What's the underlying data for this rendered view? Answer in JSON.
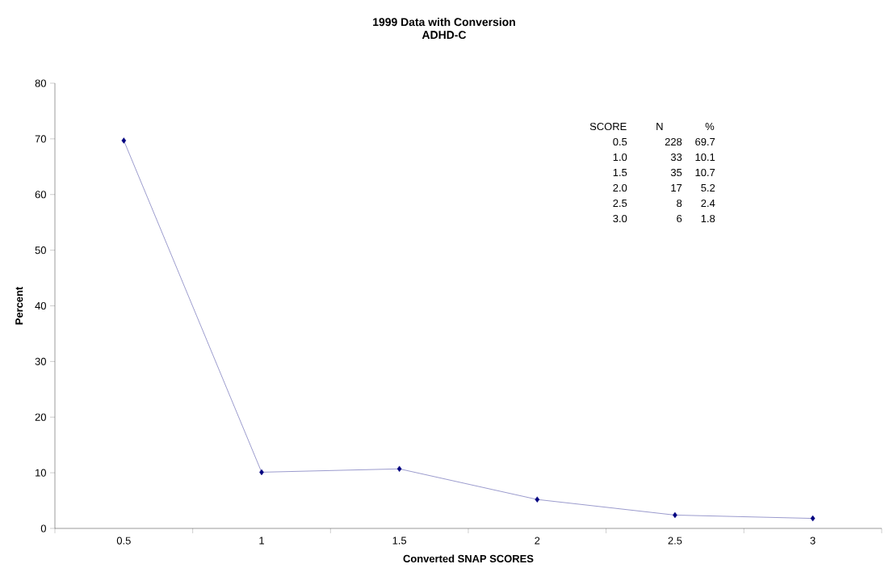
{
  "chart_data": {
    "type": "line",
    "title": "1999 Data with Conversion",
    "subtitle": "ADHD-C",
    "xlabel": "Converted SNAP SCORES",
    "ylabel": "Percent",
    "categories": [
      "0.5",
      "1",
      "1.5",
      "2",
      "2.5",
      "3"
    ],
    "series": [
      {
        "color": "#000080",
        "values": [
          69.7,
          10.1,
          10.7,
          5.2,
          2.4,
          1.8
        ]
      }
    ],
    "ylim": [
      0,
      80
    ],
    "yticks": [
      0,
      10,
      20,
      30,
      40,
      50,
      60,
      70,
      80
    ],
    "marker": "diamond",
    "line_style": "solid",
    "grid": false,
    "annotations": [
      "SCORE",
      "N",
      "%",
      "0.5",
      "228",
      "69.7",
      "1.0",
      "33",
      "10.1",
      "1.5",
      "35",
      "10.7",
      "2.0",
      "17",
      "5.2",
      "2.5",
      "8",
      "2.4",
      "3.0",
      "6",
      "1.8"
    ]
  }
}
